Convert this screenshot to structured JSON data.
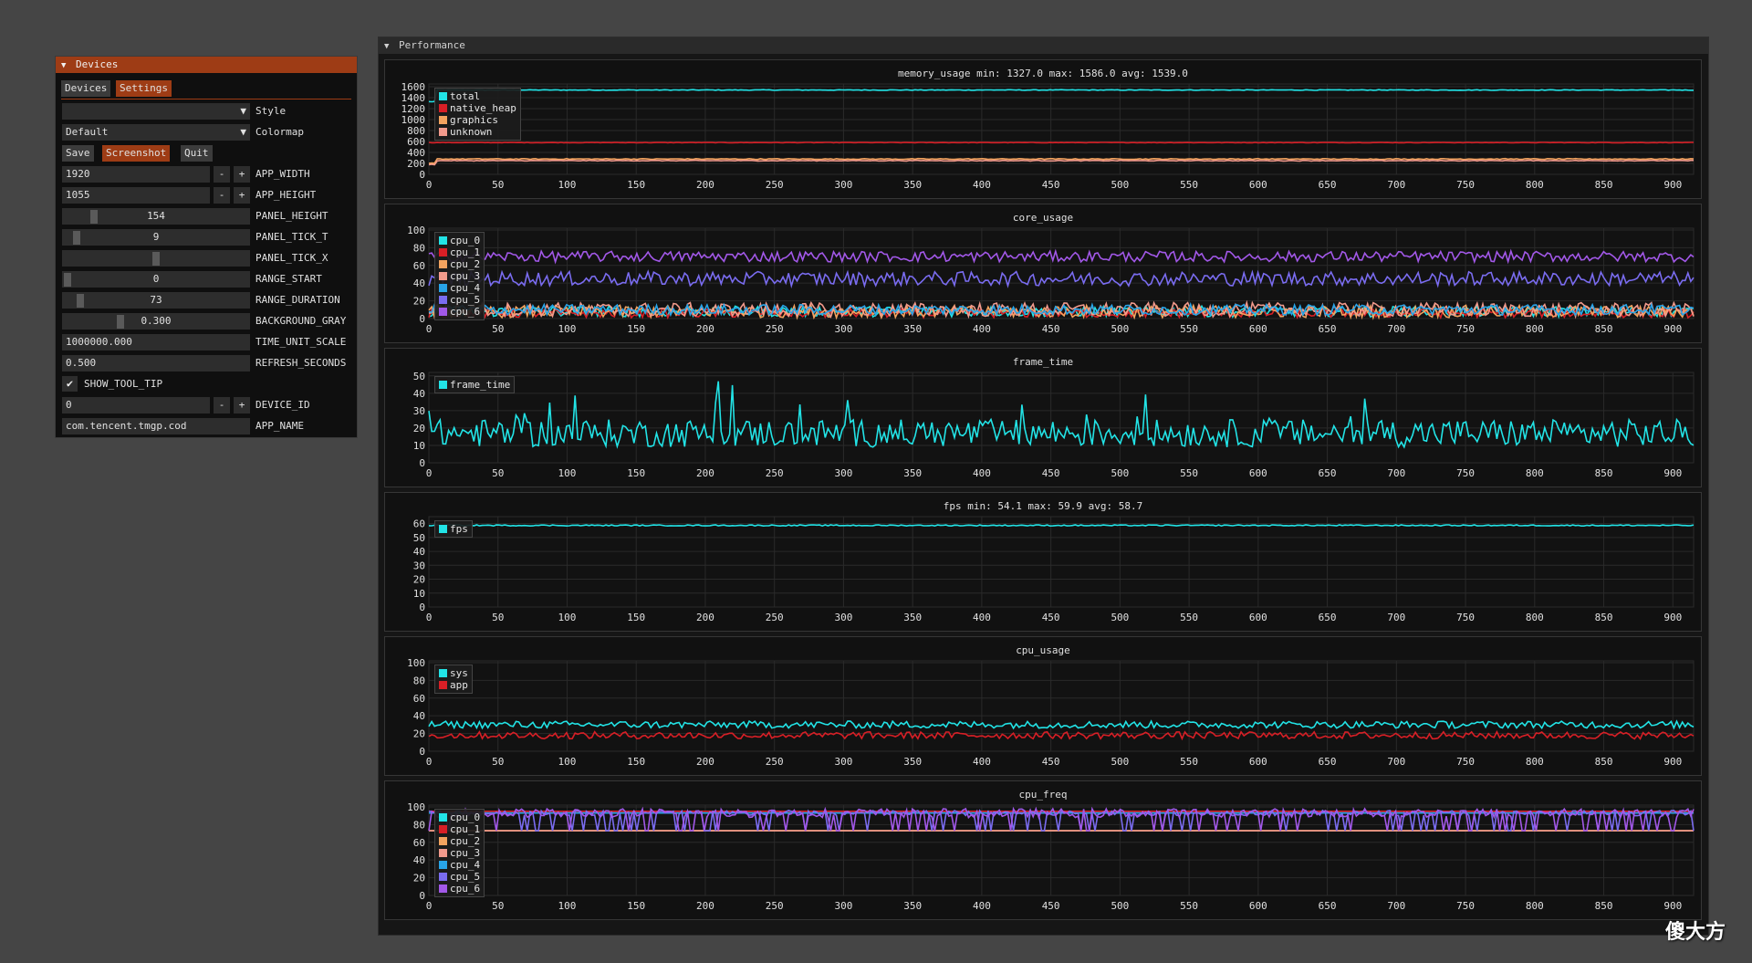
{
  "devices_window": {
    "title": "Devices",
    "tabs": [
      {
        "label": "Devices",
        "active": false
      },
      {
        "label": "Settings",
        "active": true
      }
    ],
    "style": {
      "value": "",
      "label": "Style"
    },
    "colormap": {
      "value": "Default",
      "label": "Colormap"
    },
    "buttons": {
      "save": "Save",
      "screenshot": "Screenshot",
      "quit": "Quit"
    },
    "app_width": {
      "value": "1920",
      "label": "APP_WIDTH"
    },
    "app_height": {
      "value": "1055",
      "label": "APP_HEIGHT"
    },
    "panel_height": {
      "value": "154",
      "label": "PANEL_HEIGHT",
      "fraction": 0.15
    },
    "panel_tick_t": {
      "value": "9",
      "label": "PANEL_TICK_T",
      "fraction": 0.05
    },
    "panel_tick_x": {
      "value": "5",
      "label": "PANEL_TICK_X",
      "fraction": 0.5
    },
    "range_start": {
      "value": "0",
      "label": "RANGE_START",
      "fraction": 0.0
    },
    "range_duration": {
      "value": "73",
      "label": "RANGE_DURATION",
      "fraction": 0.07
    },
    "background_gray": {
      "value": "0.300",
      "label": "BACKGROUND_GRAY",
      "fraction": 0.3
    },
    "time_unit_scale": {
      "value": "1000000.000",
      "label": "TIME_UNIT_SCALE"
    },
    "refresh_seconds": {
      "value": "0.500",
      "label": "REFRESH_SECONDS"
    },
    "show_tool_tip": {
      "label": "SHOW_TOOL_TIP",
      "checked": true
    },
    "device_id": {
      "value": "0",
      "label": "DEVICE_ID"
    },
    "app_name": {
      "value": "com.tencent.tmgp.cod",
      "label": "APP_NAME"
    },
    "stepper_minus": "-",
    "stepper_plus": "+"
  },
  "performance_window": {
    "title": "Performance"
  },
  "chart_data": [
    {
      "type": "line",
      "title": "memory_usage min: 1327.0 max: 1586.0 avg: 1539.0",
      "ylim": [
        0,
        1650
      ],
      "yticks": [
        "1600",
        "1400",
        "1200",
        "1000",
        "800",
        "600",
        "400",
        "200",
        "0"
      ],
      "yticks_values": [
        1600,
        1400,
        1200,
        1000,
        800,
        600,
        400,
        200,
        0
      ],
      "xlim": [
        0,
        915
      ],
      "xticks": [
        0,
        50,
        100,
        150,
        200,
        250,
        300,
        350,
        400,
        450,
        500,
        550,
        600,
        650,
        700,
        750,
        800,
        850,
        900
      ],
      "grid": true,
      "legend_position": "top-left",
      "series": [
        {
          "name": "total",
          "color": "#22e3e6",
          "base": 1540,
          "noise": 6,
          "start": 1327
        },
        {
          "name": "native_heap",
          "color": "#d81f26",
          "base": 580,
          "noise": 4,
          "start": 580
        },
        {
          "name": "graphics",
          "color": "#f3a35f",
          "base": 280,
          "noise": 8,
          "start": 200
        },
        {
          "name": "unknown",
          "color": "#f29a8c",
          "base": 250,
          "noise": 6,
          "start": 180
        }
      ]
    },
    {
      "type": "line",
      "title": "core_usage",
      "ylim": [
        0,
        102
      ],
      "yticks": [
        "100",
        "80",
        "60",
        "40",
        "20",
        "0"
      ],
      "yticks_values": [
        100,
        80,
        60,
        40,
        20,
        0
      ],
      "xlim": [
        0,
        915
      ],
      "xticks": [
        0,
        50,
        100,
        150,
        200,
        250,
        300,
        350,
        400,
        450,
        500,
        550,
        600,
        650,
        700,
        750,
        800,
        850,
        900
      ],
      "grid": true,
      "legend_position": "top-left",
      "series": [
        {
          "name": "cpu_0",
          "color": "#22e3e6",
          "base": 8,
          "noise": 6
        },
        {
          "name": "cpu_1",
          "color": "#d81f26",
          "base": 6,
          "noise": 5
        },
        {
          "name": "cpu_2",
          "color": "#f3a35f",
          "base": 8,
          "noise": 7
        },
        {
          "name": "cpu_3",
          "color": "#f29a8c",
          "base": 10,
          "noise": 8
        },
        {
          "name": "cpu_4",
          "color": "#28a4e8",
          "base": 10,
          "noise": 6
        },
        {
          "name": "cpu_5",
          "color": "#7a6cf0",
          "base": 45,
          "noise": 8
        },
        {
          "name": "cpu_6",
          "color": "#a258e8",
          "base": 70,
          "noise": 6
        }
      ]
    },
    {
      "type": "line",
      "title": "frame_time",
      "ylim": [
        0,
        52
      ],
      "yticks": [
        "50",
        "40",
        "30",
        "20",
        "10",
        "0"
      ],
      "yticks_values": [
        50,
        40,
        30,
        20,
        10,
        0
      ],
      "xlim": [
        0,
        915
      ],
      "xticks": [
        0,
        50,
        100,
        150,
        200,
        250,
        300,
        350,
        400,
        450,
        500,
        550,
        600,
        650,
        700,
        750,
        800,
        850,
        900
      ],
      "grid": true,
      "legend_position": "top-left",
      "series": [
        {
          "name": "frame_time",
          "color": "#22e3e6",
          "base": 17,
          "noise": 8
        }
      ]
    },
    {
      "type": "line",
      "title": "fps min: 54.1 max: 59.9 avg: 58.7",
      "ylim": [
        0,
        65
      ],
      "yticks": [
        "60",
        "50",
        "40",
        "30",
        "20",
        "10",
        "0"
      ],
      "yticks_values": [
        60,
        50,
        40,
        30,
        20,
        10,
        0
      ],
      "xlim": [
        0,
        915
      ],
      "xticks": [
        0,
        50,
        100,
        150,
        200,
        250,
        300,
        350,
        400,
        450,
        500,
        550,
        600,
        650,
        700,
        750,
        800,
        850,
        900
      ],
      "grid": true,
      "legend_position": "top-left",
      "series": [
        {
          "name": "fps",
          "color": "#22e3e6",
          "base": 58.7,
          "noise": 0.4
        }
      ]
    },
    {
      "type": "line",
      "title": "cpu_usage",
      "ylim": [
        0,
        102
      ],
      "yticks": [
        "100",
        "80",
        "60",
        "40",
        "20",
        "0"
      ],
      "yticks_values": [
        100,
        80,
        60,
        40,
        20,
        0
      ],
      "xlim": [
        0,
        915
      ],
      "xticks": [
        0,
        50,
        100,
        150,
        200,
        250,
        300,
        350,
        400,
        450,
        500,
        550,
        600,
        650,
        700,
        750,
        800,
        850,
        900
      ],
      "grid": true,
      "legend_position": "top-left",
      "series": [
        {
          "name": "sys",
          "color": "#22e3e6",
          "base": 30,
          "noise": 4
        },
        {
          "name": "app",
          "color": "#d81f26",
          "base": 18,
          "noise": 4
        }
      ]
    },
    {
      "type": "line",
      "title": "cpu_freq",
      "ylim": [
        0,
        102
      ],
      "yticks": [
        "100",
        "80",
        "60",
        "40",
        "20",
        "0"
      ],
      "yticks_values": [
        100,
        80,
        60,
        40,
        20,
        0
      ],
      "xlim": [
        0,
        915
      ],
      "xticks": [
        0,
        50,
        100,
        150,
        200,
        250,
        300,
        350,
        400,
        450,
        500,
        550,
        600,
        650,
        700,
        750,
        800,
        850,
        900
      ],
      "grid": true,
      "legend_position": "top-left",
      "series": [
        {
          "name": "cpu_0",
          "color": "#22e3e6",
          "base": 95,
          "noise": 0
        },
        {
          "name": "cpu_1",
          "color": "#d81f26",
          "base": 95,
          "noise": 0
        },
        {
          "name": "cpu_2",
          "color": "#f3a35f",
          "base": 73,
          "noise": 0
        },
        {
          "name": "cpu_3",
          "color": "#f29a8c",
          "base": 73,
          "noise": 0
        },
        {
          "name": "cpu_4",
          "color": "#28a4e8",
          "base": 93,
          "noise": 0
        },
        {
          "name": "cpu_5",
          "color": "#7a6cf0",
          "base": 93,
          "noise": 3
        },
        {
          "name": "cpu_6",
          "color": "#a258e8",
          "base": 93,
          "noise": 5
        }
      ]
    }
  ],
  "watermark": "傻大方"
}
